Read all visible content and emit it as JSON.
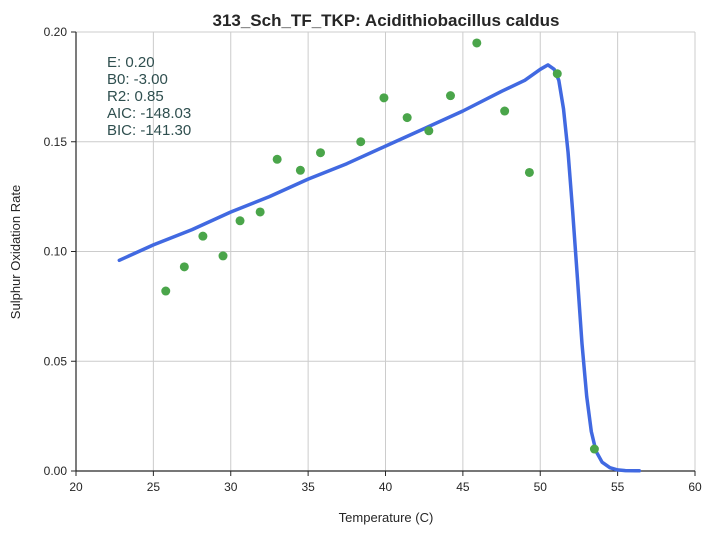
{
  "chart_data": {
    "type": "scatter",
    "title": "313_Sch_TF_TKP: Acidithiobacillus caldus",
    "xlabel": "Temperature (C)",
    "ylabel": "Sulphur Oxidation Rate",
    "xlim": [
      20,
      60
    ],
    "ylim": [
      0.0,
      0.2
    ],
    "xticks": [
      "20",
      "25",
      "30",
      "35",
      "40",
      "45",
      "50",
      "55",
      "60"
    ],
    "yticks": [
      "0.00",
      "0.05",
      "0.10",
      "0.15",
      "0.20"
    ],
    "grid": true,
    "colors": {
      "points": "#4aa54a",
      "fit": "#4169e1",
      "annotation": "#2f4f4f",
      "grid": "#cccccc"
    },
    "series": [
      {
        "kind": "points",
        "x": [
          25.8,
          27.0,
          28.2,
          29.5,
          30.6,
          31.9,
          33.0,
          34.5,
          35.8,
          38.4,
          39.9,
          41.4,
          42.8,
          44.2,
          45.9,
          47.7,
          49.3,
          51.1,
          53.5
        ],
        "y": [
          0.082,
          0.093,
          0.107,
          0.098,
          0.114,
          0.118,
          0.142,
          0.137,
          0.145,
          0.15,
          0.17,
          0.161,
          0.155,
          0.171,
          0.195,
          0.164,
          0.136,
          0.181,
          0.01
        ]
      },
      {
        "kind": "fit",
        "x": [
          22.8,
          25,
          27.5,
          30,
          32.5,
          35,
          37.5,
          40,
          42.5,
          45,
          47.5,
          49,
          50,
          50.5,
          50.9,
          51.2,
          51.5,
          51.8,
          52.1,
          52.4,
          52.7,
          53.0,
          53.3,
          53.6,
          54.0,
          54.5,
          55.0,
          55.5,
          56.4
        ],
        "y": [
          0.096,
          0.103,
          0.11,
          0.118,
          0.125,
          0.133,
          0.14,
          0.148,
          0.156,
          0.164,
          0.173,
          0.178,
          0.183,
          0.185,
          0.183,
          0.178,
          0.165,
          0.145,
          0.118,
          0.088,
          0.058,
          0.034,
          0.018,
          0.009,
          0.004,
          0.0015,
          0.0005,
          0.0002,
          0.0001
        ]
      }
    ],
    "annotations": [
      "E:  0.20",
      "B0:  -3.00",
      "R2:  0.85",
      "AIC: -148.03",
      "BIC: -141.30"
    ]
  }
}
